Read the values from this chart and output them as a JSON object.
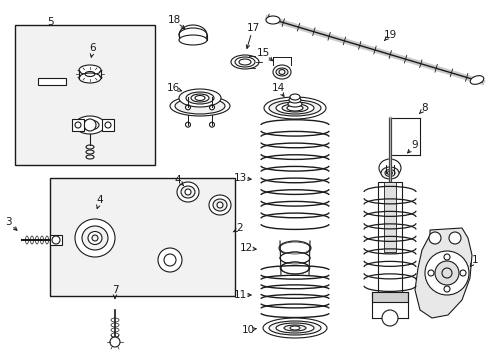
{
  "bg_color": "#ffffff",
  "line_color": "#1a1a1a",
  "box_fill": "#f2f2f2",
  "fig_width": 4.89,
  "fig_height": 3.6,
  "dpi": 100
}
